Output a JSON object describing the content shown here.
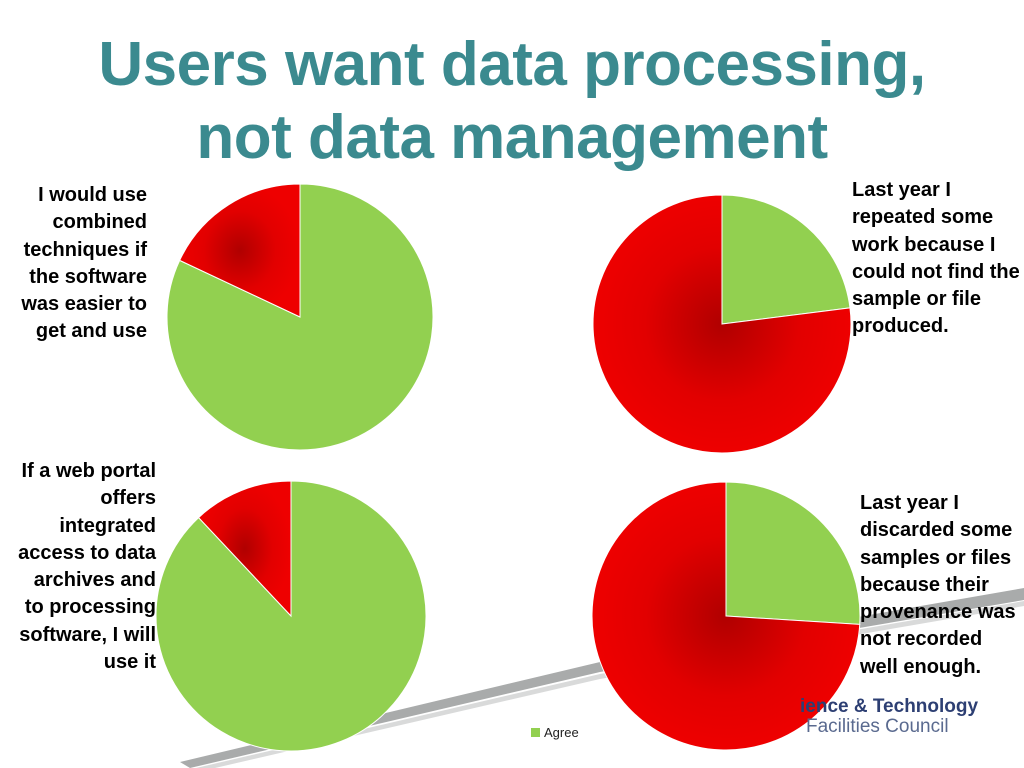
{
  "slide": {
    "title_line1": "Users want data processing,",
    "title_line2": "not data management",
    "logo_line1": "ience & Technology",
    "logo_line2": "Facilities Council"
  },
  "colors": {
    "agree": "#92d050",
    "disagree": "#ee0000",
    "title": "#3b8a8f"
  },
  "chart_data": [
    {
      "type": "pie",
      "title": "I would use combined techniques if the software was easier to get and use ",
      "categories": [
        "Agree",
        ""
      ],
      "values": [
        82,
        18
      ]
    },
    {
      "type": "pie",
      "title": "Last year I repeated some work because I could not find the sample or file produced.",
      "categories": [
        "Agree",
        ""
      ],
      "values": [
        23,
        77
      ]
    },
    {
      "type": "pie",
      "title": "If a web portal offers integrated access to data archives and to processing software, I will use it",
      "categories": [
        "Agree",
        ""
      ],
      "values": [
        88,
        12
      ]
    },
    {
      "type": "pie",
      "title": "Last year I discarded some samples or files because their provenance was not recorded well enough.",
      "categories": [
        "Agree",
        ""
      ],
      "values": [
        26,
        74
      ]
    }
  ],
  "legend": {
    "label": "Agree"
  }
}
